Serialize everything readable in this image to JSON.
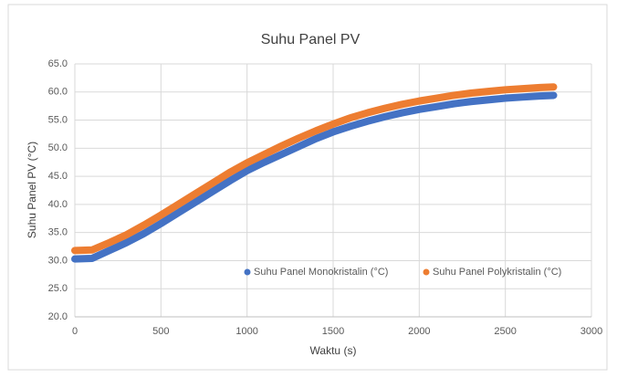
{
  "chart_data": {
    "type": "line",
    "title": "Suhu Panel PV",
    "x_label": "Waktu (s)",
    "y_label": "Suhu Panel PV (°C)",
    "xlim": [
      0,
      3000
    ],
    "xticks": [
      0,
      500,
      1000,
      1500,
      2000,
      2500,
      3000
    ],
    "ylim": [
      20,
      65
    ],
    "yticks": [
      {
        "value": 20,
        "label": "20.0"
      },
      {
        "value": 25,
        "label": "25.0"
      },
      {
        "value": 30,
        "label": "30.0"
      },
      {
        "value": 35,
        "label": "35.0"
      },
      {
        "value": 40,
        "label": "40.0"
      },
      {
        "value": 45,
        "label": "45.0"
      },
      {
        "value": 50,
        "label": "50.0"
      },
      {
        "value": 55,
        "label": "55.0"
      },
      {
        "value": 60,
        "label": "60.0"
      },
      {
        "value": 65,
        "label": "65.0"
      }
    ],
    "grid": true,
    "legend": "bottom",
    "x": [
      0,
      100,
      200,
      300,
      400,
      500,
      600,
      700,
      800,
      900,
      1000,
      1100,
      1200,
      1300,
      1400,
      1500,
      1600,
      1700,
      1800,
      1900,
      2000,
      2100,
      2200,
      2300,
      2400,
      2500,
      2600,
      2700,
      2780
    ],
    "series": [
      {
        "name": "Suhu Panel Monokristalin (°C)",
        "color": "#4472c4",
        "values": [
          30.3,
          30.4,
          31.8,
          33.2,
          34.8,
          36.6,
          38.5,
          40.4,
          42.3,
          44.2,
          46.0,
          47.5,
          48.9,
          50.3,
          51.7,
          52.9,
          53.9,
          54.8,
          55.6,
          56.3,
          56.9,
          57.4,
          57.9,
          58.3,
          58.6,
          58.9,
          59.1,
          59.3,
          59.4
        ]
      },
      {
        "name": "Suhu Panel Polykristalin (°C)",
        "color": "#ed7d31",
        "values": [
          31.8,
          31.9,
          33.2,
          34.6,
          36.3,
          38.1,
          40.0,
          41.9,
          43.8,
          45.7,
          47.4,
          48.9,
          50.4,
          51.8,
          53.1,
          54.3,
          55.4,
          56.3,
          57.1,
          57.8,
          58.4,
          58.9,
          59.4,
          59.8,
          60.1,
          60.4,
          60.6,
          60.8,
          60.9
        ]
      }
    ]
  }
}
